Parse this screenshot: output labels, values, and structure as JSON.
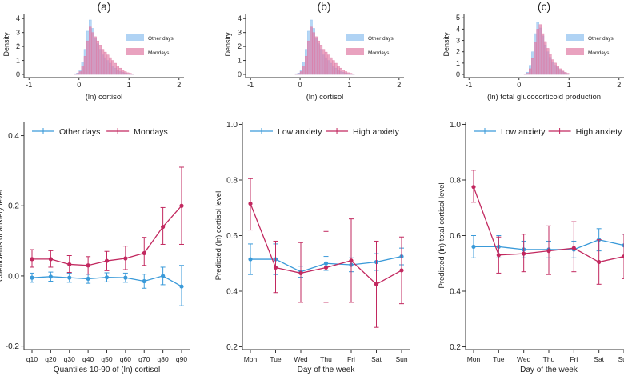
{
  "panel_letters": [
    "(a)",
    "(b)",
    "(c)"
  ],
  "colors": {
    "blue": "#3a9ad9",
    "red": "#c2285f",
    "hist_blue": "#8fc1f0",
    "hist_red": "#e07aa4",
    "axis": "#333333"
  },
  "chart_data": [
    {
      "type": "bar",
      "panel": "(a)",
      "xlabel": "(ln) cortisol",
      "ylabel": "Density",
      "xticks": [
        -1,
        0,
        1,
        2
      ],
      "yticks": [
        0,
        1,
        2,
        3,
        4
      ],
      "xlim": [
        -1.1,
        2.1
      ],
      "ylim": [
        0,
        4.3
      ],
      "bin_start": -0.1,
      "bin_width": 0.05,
      "legend": [
        "Other days",
        "Mondays"
      ],
      "series": [
        {
          "name": "Other days",
          "values": [
            0.05,
            0.1,
            0.3,
            0.9,
            1.8,
            3.1,
            3.9,
            3.3,
            2.6,
            2.2,
            1.8,
            1.4,
            1.2,
            1.0,
            0.8,
            0.6,
            0.45,
            0.3,
            0.2,
            0.15,
            0.1,
            0.06,
            0.04,
            0.02
          ]
        },
        {
          "name": "Mondays",
          "values": [
            0.02,
            0.06,
            0.2,
            0.6,
            1.3,
            2.4,
            3.4,
            3.0,
            2.7,
            2.4,
            2.1,
            1.8,
            1.6,
            1.4,
            1.2,
            1.0,
            0.8,
            0.6,
            0.45,
            0.3,
            0.2,
            0.12,
            0.08,
            0.04
          ]
        }
      ]
    },
    {
      "type": "bar",
      "panel": "(b)",
      "xlabel": "(ln) cortisol",
      "ylabel": "Density",
      "xticks": [
        -1,
        0,
        1,
        2
      ],
      "yticks": [
        0,
        1,
        2,
        3,
        4
      ],
      "xlim": [
        -1.1,
        2.1
      ],
      "ylim": [
        0,
        4.3
      ],
      "bin_start": -0.1,
      "bin_width": 0.05,
      "legend": [
        "Other days",
        "Mondays"
      ],
      "series": [
        {
          "name": "Other days",
          "values": [
            0.05,
            0.1,
            0.3,
            0.9,
            1.8,
            3.1,
            3.9,
            3.3,
            2.6,
            2.2,
            1.8,
            1.4,
            1.2,
            1.0,
            0.8,
            0.6,
            0.45,
            0.3,
            0.2,
            0.15,
            0.1,
            0.06,
            0.04,
            0.02
          ]
        },
        {
          "name": "Mondays",
          "values": [
            0.02,
            0.06,
            0.2,
            0.6,
            1.3,
            2.4,
            3.4,
            3.0,
            2.7,
            2.4,
            2.1,
            1.8,
            1.6,
            1.4,
            1.2,
            1.0,
            0.8,
            0.6,
            0.45,
            0.3,
            0.2,
            0.12,
            0.08,
            0.04
          ]
        }
      ]
    },
    {
      "type": "bar",
      "panel": "(c)",
      "xlabel": "(ln) total glucocorticoid production",
      "ylabel": "Density",
      "xticks": [
        -1,
        0,
        1,
        2
      ],
      "yticks": [
        0,
        1,
        2,
        3,
        4,
        5
      ],
      "xlim": [
        -1.1,
        2.1
      ],
      "ylim": [
        0,
        5.3
      ],
      "bin_start": 0.1,
      "bin_width": 0.05,
      "legend": [
        "Other days",
        "Mondays"
      ],
      "series": [
        {
          "name": "Other days",
          "values": [
            0.05,
            0.2,
            0.8,
            2.0,
            3.6,
            4.6,
            4.1,
            3.4,
            2.6,
            2.0,
            1.5,
            1.1,
            0.8,
            0.6,
            0.4,
            0.25,
            0.15,
            0.08
          ]
        },
        {
          "name": "Mondays",
          "values": [
            0.02,
            0.1,
            0.5,
            1.4,
            2.8,
            4.0,
            4.4,
            3.6,
            2.9,
            2.3,
            1.8,
            1.3,
            1.0,
            0.7,
            0.5,
            0.3,
            0.18,
            0.1
          ]
        }
      ]
    },
    {
      "type": "line",
      "panel": "(a)",
      "xlabel": "Quantiles 10-90 of (ln) cortisol",
      "ylabel": "Coefficients of anxiety level",
      "categories": [
        "q10",
        "q20",
        "q30",
        "q40",
        "q50",
        "q60",
        "q70",
        "q80",
        "q90"
      ],
      "ylim": [
        -0.21,
        0.44
      ],
      "yticks": [
        -0.2,
        0.0,
        0.2,
        0.4
      ],
      "ytick_labels": [
        "-0.2",
        "0.0",
        "0.2",
        "0.4"
      ],
      "legend": [
        "Other days",
        "Mondays"
      ],
      "series": [
        {
          "name": "Other days",
          "values": [
            -0.005,
            -0.002,
            -0.005,
            -0.008,
            -0.004,
            -0.005,
            -0.015,
            0.0,
            -0.03
          ],
          "lower": [
            -0.018,
            -0.015,
            -0.018,
            -0.021,
            -0.017,
            -0.018,
            -0.035,
            -0.025,
            -0.085
          ],
          "upper": [
            0.008,
            0.011,
            0.008,
            0.005,
            0.009,
            0.008,
            0.005,
            0.025,
            0.03
          ]
        },
        {
          "name": "Mondays",
          "values": [
            0.048,
            0.048,
            0.033,
            0.03,
            0.043,
            0.05,
            0.065,
            0.14,
            0.2
          ],
          "lower": [
            0.025,
            0.025,
            0.01,
            0.005,
            0.015,
            0.018,
            0.03,
            0.09,
            0.09
          ],
          "upper": [
            0.075,
            0.072,
            0.058,
            0.055,
            0.07,
            0.085,
            0.11,
            0.195,
            0.31
          ]
        }
      ]
    },
    {
      "type": "line",
      "panel": "(b)",
      "xlabel": "Day of the week",
      "ylabel": "Predicted (ln) cortisol level",
      "categories": [
        "Mon",
        "Tue",
        "Wed",
        "Thu",
        "Fri",
        "Sat",
        "Sun"
      ],
      "ylim": [
        0.19,
        1.01
      ],
      "yticks": [
        0.2,
        0.4,
        0.6,
        0.8,
        1.0
      ],
      "ytick_labels": [
        "0.2",
        "0.4",
        "0.6",
        "0.8",
        "1.0"
      ],
      "legend": [
        "Low anxiety",
        "High anxiety"
      ],
      "series": [
        {
          "name": "Low anxiety",
          "values": [
            0.515,
            0.515,
            0.47,
            0.5,
            0.495,
            0.505,
            0.525
          ],
          "lower": [
            0.46,
            0.46,
            0.45,
            0.475,
            0.47,
            0.475,
            0.495
          ],
          "upper": [
            0.57,
            0.57,
            0.49,
            0.525,
            0.52,
            0.535,
            0.555
          ]
        },
        {
          "name": "High anxiety",
          "values": [
            0.715,
            0.485,
            0.465,
            0.485,
            0.51,
            0.425,
            0.475
          ],
          "lower": [
            0.62,
            0.395,
            0.36,
            0.36,
            0.36,
            0.27,
            0.355
          ],
          "upper": [
            0.805,
            0.58,
            0.575,
            0.615,
            0.66,
            0.58,
            0.595
          ]
        }
      ]
    },
    {
      "type": "line",
      "panel": "(c)",
      "xlabel": "Day of the week",
      "ylabel": "Predicted (ln) total cortisol level",
      "categories": [
        "Mon",
        "Tue",
        "Wed",
        "Thu",
        "Fri",
        "Sat",
        "Sun"
      ],
      "ylim": [
        0.19,
        1.01
      ],
      "yticks": [
        0.2,
        0.4,
        0.6,
        0.8,
        1.0
      ],
      "ytick_labels": [
        "0.2",
        "0.4",
        "0.6",
        "0.8",
        "1.0"
      ],
      "legend": [
        "Low anxiety",
        "High anxiety"
      ],
      "series": [
        {
          "name": "Low anxiety",
          "values": [
            0.56,
            0.56,
            0.55,
            0.55,
            0.55,
            0.585,
            0.565
          ],
          "lower": [
            0.52,
            0.52,
            0.52,
            0.52,
            0.52,
            0.545,
            0.525
          ],
          "upper": [
            0.6,
            0.6,
            0.58,
            0.58,
            0.58,
            0.625,
            0.605
          ]
        },
        {
          "name": "High anxiety",
          "values": [
            0.775,
            0.53,
            0.535,
            0.545,
            0.555,
            0.505,
            0.525
          ],
          "lower": [
            0.72,
            0.465,
            0.47,
            0.46,
            0.47,
            0.425,
            0.445
          ],
          "upper": [
            0.835,
            0.595,
            0.605,
            0.635,
            0.65,
            0.585,
            0.605
          ]
        }
      ]
    }
  ]
}
